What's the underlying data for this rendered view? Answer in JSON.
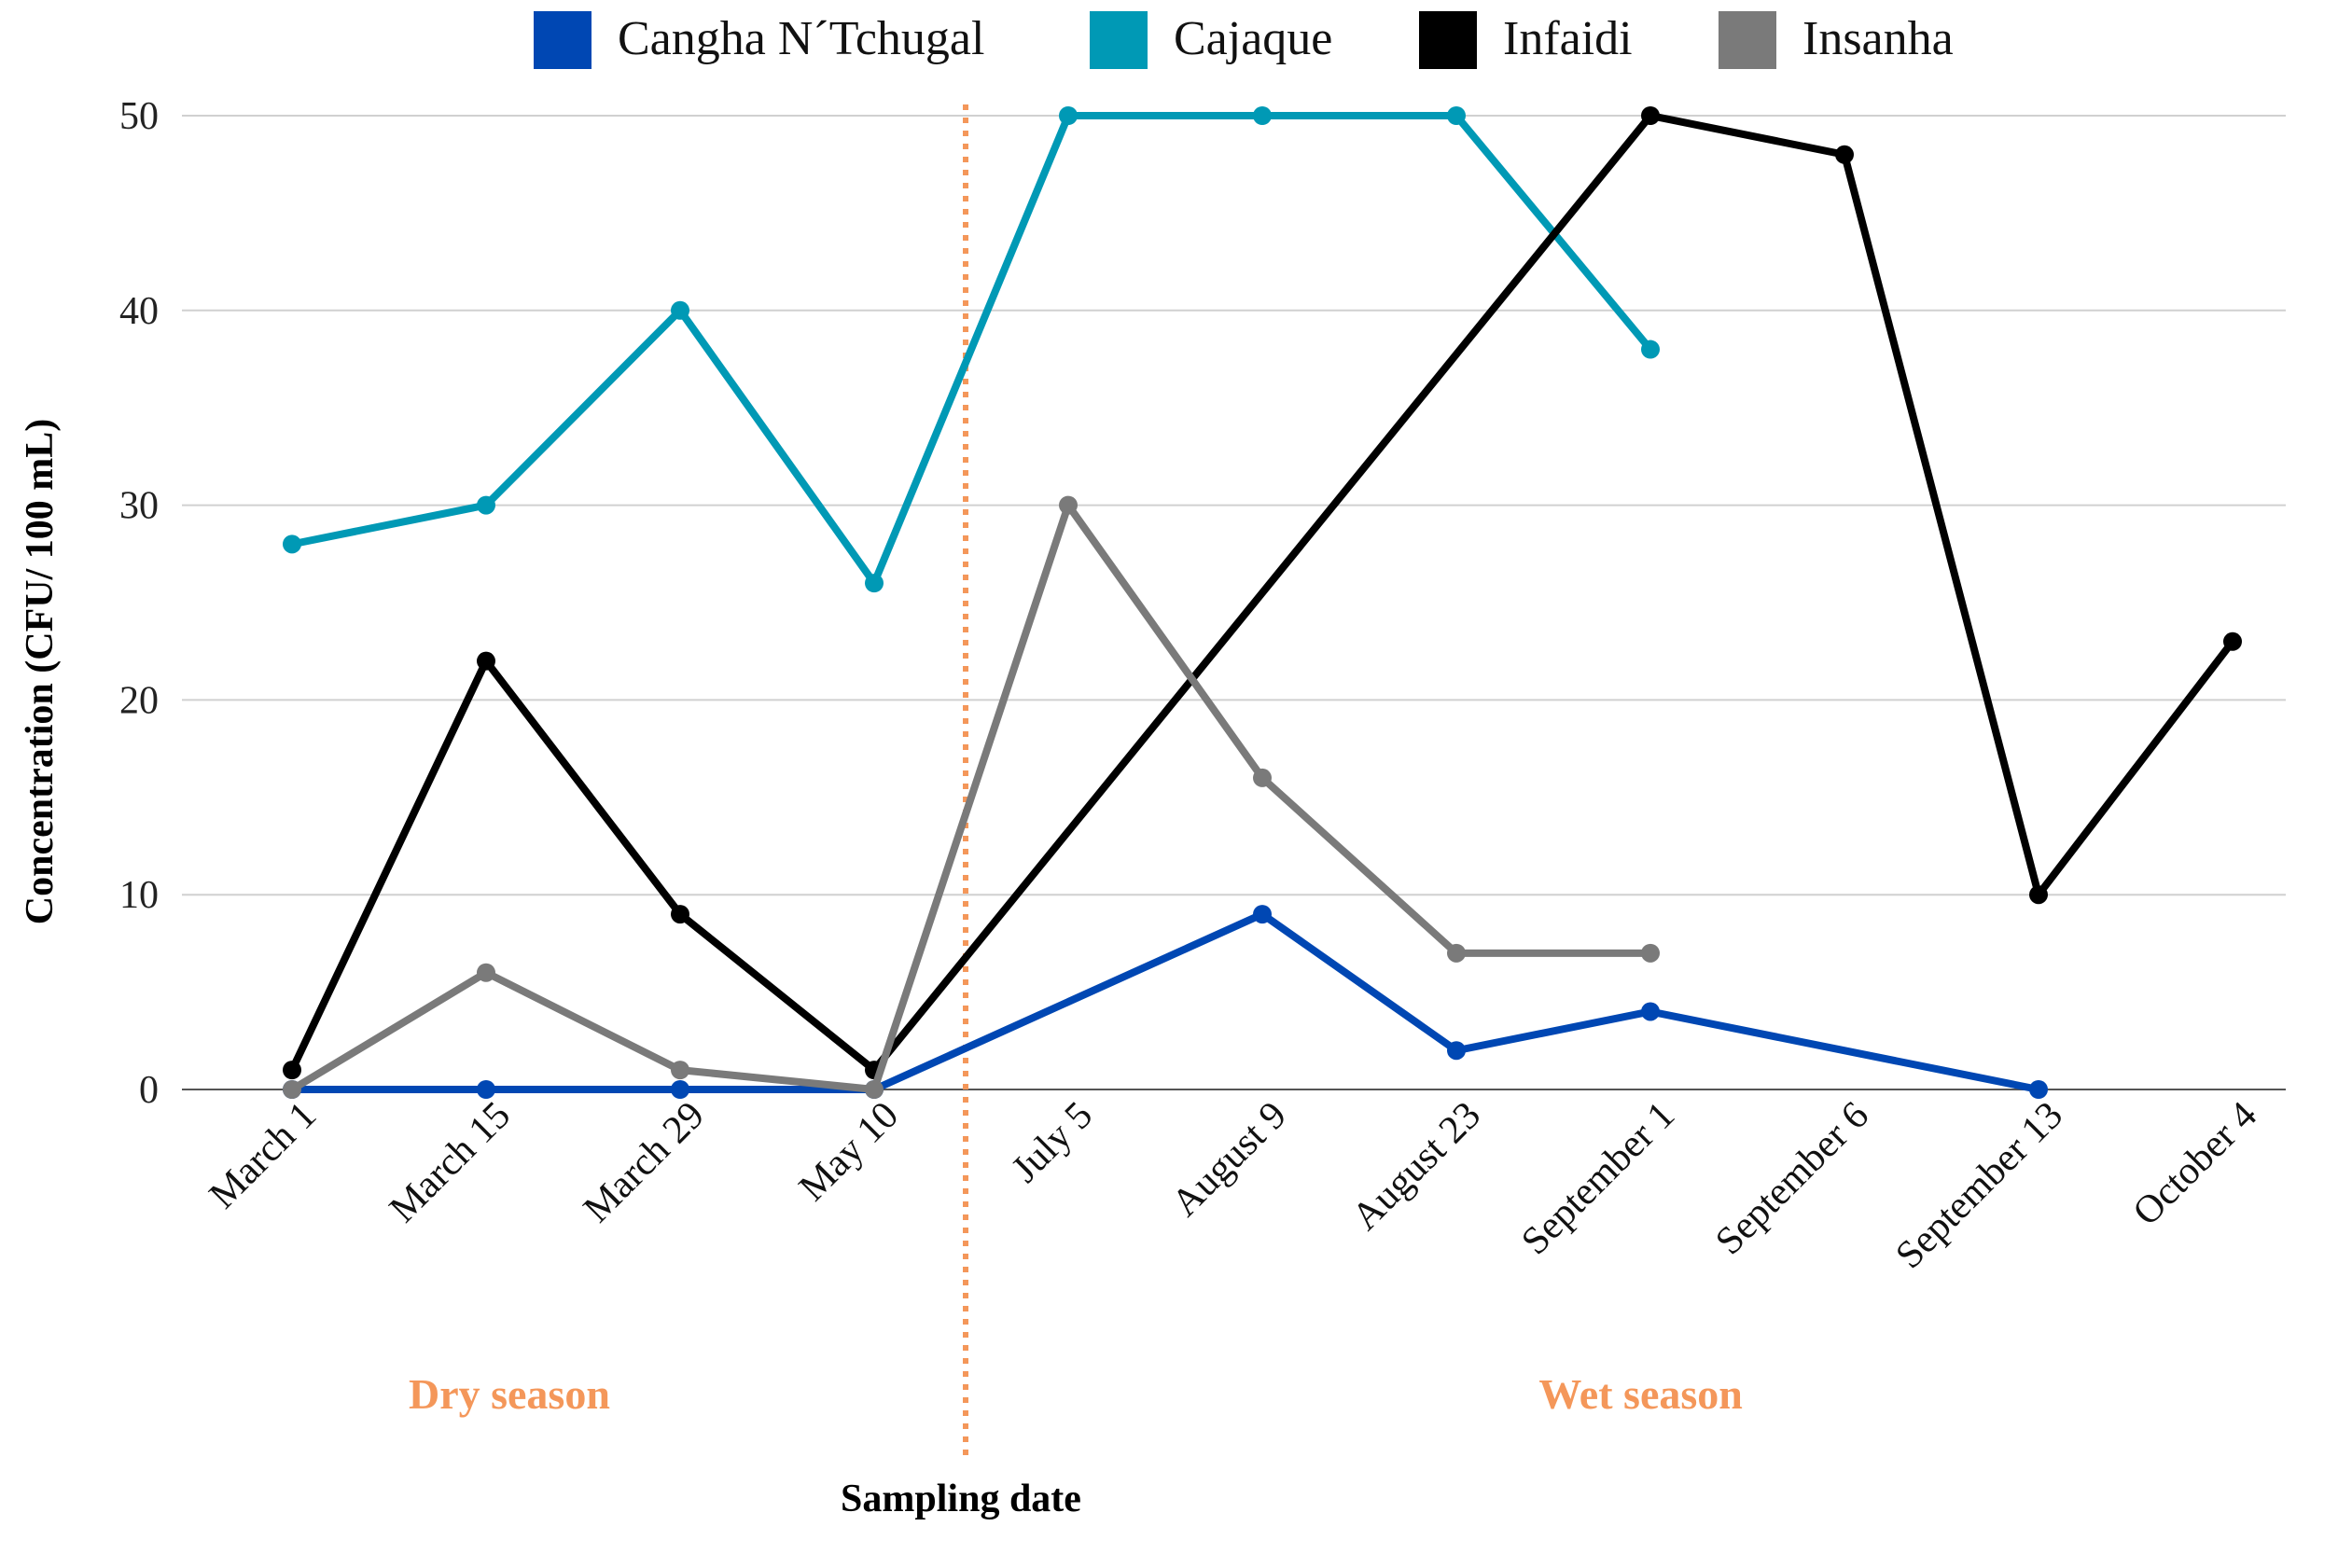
{
  "chart_data": {
    "type": "line",
    "title": "",
    "xlabel": "Sampling date",
    "ylabel": "Concentration (CFU/ 100 mL)",
    "ylim": [
      0,
      50
    ],
    "yticks": [
      0,
      10,
      20,
      30,
      40,
      50
    ],
    "grid": true,
    "legend_position": "top",
    "categories": [
      "March 1",
      "March 15",
      "March 29",
      "May 10",
      "July 5",
      "August 9",
      "August 23",
      "September 1",
      "September 6",
      "September 13",
      "October 4"
    ],
    "series": [
      {
        "name": "Cangha N´Tchugal",
        "color": "#0047b3",
        "values": [
          0,
          0,
          0,
          0,
          null,
          9,
          2,
          4,
          null,
          0,
          null
        ]
      },
      {
        "name": "Cajaque",
        "color": "#0099b5",
        "values": [
          28,
          30,
          40,
          26,
          50,
          50,
          50,
          38,
          null,
          null,
          null
        ]
      },
      {
        "name": "Infaidi",
        "color": "#000000",
        "values": [
          1,
          22,
          9,
          1,
          null,
          null,
          null,
          50,
          48,
          10,
          23
        ]
      },
      {
        "name": "Insanha",
        "color": "#7a7a7a",
        "values": [
          0,
          6,
          1,
          0,
          30,
          16,
          7,
          7,
          null,
          null,
          null
        ]
      }
    ],
    "annotations": {
      "divider_after_category": "May 10",
      "divider_color": "#f4975a",
      "seasons": [
        {
          "label": "Dry season",
          "center_category": 1.12
        },
        {
          "label": "Wet season",
          "center_category": 6.95
        }
      ],
      "season_color": "#f4975a"
    }
  }
}
